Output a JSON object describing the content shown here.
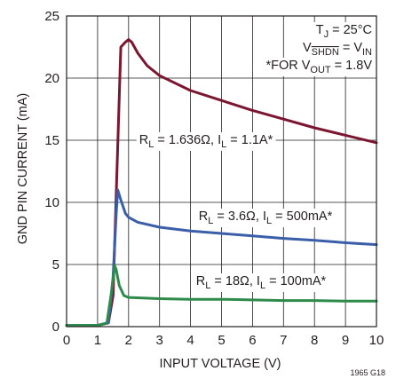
{
  "chart_data": {
    "type": "line",
    "xlabel": "INPUT VOLTAGE (V)",
    "ylabel": "GND PIN CURRENT (mA)",
    "xlim": [
      0,
      10
    ],
    "ylim": [
      0,
      25
    ],
    "x_ticks": [
      "0",
      "1",
      "2",
      "3",
      "4",
      "5",
      "6",
      "7",
      "8",
      "9",
      "10"
    ],
    "y_ticks": [
      "0",
      "5",
      "10",
      "15",
      "20",
      "25"
    ],
    "grid": true,
    "conditions": {
      "tj": {
        "a": "T",
        "sub": "J",
        "b": " = 25°C"
      },
      "vshdn": {
        "a": "V",
        "sub": "SHDN",
        "b": " = V",
        "sub2": "IN"
      },
      "vout": {
        "a": "*FOR V",
        "sub": "OUT",
        "b": " = 1.8V"
      }
    },
    "series": [
      {
        "color": "#7b1530",
        "label": {
          "a": "R",
          "sub": "L",
          "b": " = 1.636Ω, I",
          "sub2": "L",
          "c": " = 1.1A*"
        },
        "x": [
          0,
          1.0,
          1.35,
          1.5,
          1.6,
          1.75,
          1.9,
          2.0,
          2.1,
          2.3,
          2.6,
          3.0,
          4.0,
          5.0,
          6.0,
          7.0,
          8.0,
          9.0,
          10.0
        ],
        "y": [
          0.1,
          0.1,
          0.3,
          2.5,
          10.5,
          22.5,
          22.9,
          23.1,
          22.9,
          22.0,
          21.0,
          20.2,
          19.0,
          18.2,
          17.4,
          16.7,
          16.0,
          15.4,
          14.8
        ]
      },
      {
        "color": "#3a5fa8",
        "label": {
          "a": "R",
          "sub": "L",
          "b": " = 3.6Ω, I",
          "sub2": "L",
          "c": " = 500mA*"
        },
        "x": [
          0,
          1.0,
          1.35,
          1.5,
          1.6,
          1.65,
          1.75,
          1.9,
          2.0,
          2.3,
          3.0,
          4.0,
          5.0,
          6.0,
          7.0,
          8.0,
          9.0,
          10.0
        ],
        "y": [
          0.1,
          0.1,
          0.3,
          4.0,
          9.0,
          11.0,
          10.2,
          9.1,
          8.8,
          8.4,
          8.0,
          7.7,
          7.5,
          7.3,
          7.1,
          6.95,
          6.75,
          6.6
        ]
      },
      {
        "color": "#2e8a4a",
        "label": {
          "a": "R",
          "sub": "L",
          "b": " = 18Ω, I",
          "sub2": "L",
          "c": " = 100mA*"
        },
        "x": [
          0,
          1.0,
          1.3,
          1.45,
          1.55,
          1.6,
          1.7,
          1.85,
          2.0,
          3.0,
          4.0,
          5.0,
          6.0,
          7.0,
          8.0,
          9.0,
          10.0
        ],
        "y": [
          0.1,
          0.1,
          0.3,
          2.8,
          4.9,
          4.6,
          3.3,
          2.5,
          2.35,
          2.25,
          2.2,
          2.2,
          2.15,
          2.1,
          2.1,
          2.05,
          2.05
        ]
      }
    ]
  },
  "figure_id": "1965 G18"
}
